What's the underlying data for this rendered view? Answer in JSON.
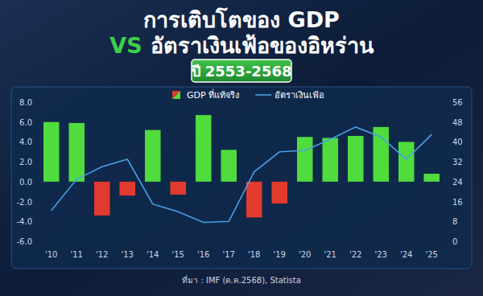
{
  "chart_data": {
    "type": "bar",
    "title": [
      "การเติบโตของ GDP",
      "VS",
      "อัตราเงินเฟ้อของอิหร่าน"
    ],
    "subtitle": "ปี 2553-2568",
    "source": "ที่มา : IMF (ต.ค.2568), Statista",
    "categories": [
      "'10",
      "'11",
      "'12",
      "'13",
      "'14",
      "'15",
      "'16",
      "'17",
      "'18",
      "'19",
      "'20",
      "'21",
      "'22",
      "'23",
      "'24",
      "'25"
    ],
    "series": [
      {
        "name": "GDP ที่แท้จริง",
        "type": "bar",
        "values": [
          6.0,
          5.9,
          -3.4,
          -1.4,
          5.2,
          -1.3,
          6.7,
          3.2,
          -3.6,
          -2.2,
          4.5,
          4.4,
          4.6,
          5.5,
          4.0,
          0.8
        ],
        "colors": [
          "#4fdc3c",
          "#4fdc3c",
          "#e23a2e",
          "#e23a2e",
          "#4fdc3c",
          "#e23a2e",
          "#4fdc3c",
          "#4fdc3c",
          "#e23a2e",
          "#e23a2e",
          "#4fdc3c",
          "#4fdc3c",
          "#4fdc3c",
          "#4fdc3c",
          "#4fdc3c",
          "#4fdc3c"
        ]
      },
      {
        "name": "อัตราเงินเฟ้อ",
        "type": "line",
        "axis": "y2",
        "color": "#4a9fe6",
        "values": [
          12.4,
          25,
          30,
          33,
          15,
          11.9,
          7.6,
          8,
          28,
          36,
          36.6,
          41,
          46,
          42,
          33,
          43
        ]
      }
    ],
    "ylim": [
      -6,
      8
    ],
    "yticks": [
      {
        "value": -6,
        "label": "-6.0"
      },
      {
        "value": -4,
        "label": "-4.0"
      },
      {
        "value": -2,
        "label": "-2.0"
      },
      {
        "value": 0,
        "label": "0.0"
      },
      {
        "value": 2,
        "label": "2.0"
      },
      {
        "value": 4,
        "label": "4.0"
      },
      {
        "value": 6,
        "label": "6.0"
      },
      {
        "value": 8,
        "label": "8.0"
      }
    ],
    "y2lim": [
      0,
      56
    ],
    "y2ticks": [
      0,
      8,
      16,
      24,
      32,
      40,
      48,
      56
    ],
    "grid": false,
    "legend": "top"
  }
}
